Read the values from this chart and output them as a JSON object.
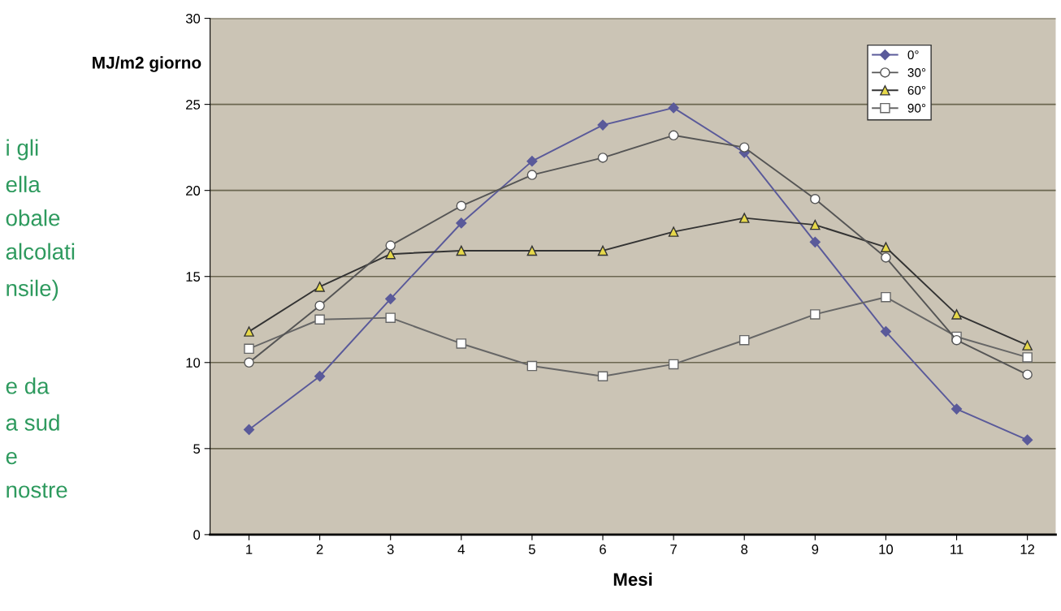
{
  "chart_data": {
    "type": "line",
    "ylabel": "MJ/m2 giorno",
    "xlabel": "Mesi",
    "categories": [
      "1",
      "2",
      "3",
      "4",
      "5",
      "6",
      "7",
      "8",
      "9",
      "10",
      "11",
      "12"
    ],
    "ylim": [
      0,
      30
    ],
    "yticks": [
      0,
      5,
      10,
      15,
      20,
      25,
      30
    ],
    "grid": "y",
    "legend": "top right",
    "series": [
      {
        "name": "0°",
        "color": "#5a5a9a",
        "marker": "diamond",
        "values": [
          6.1,
          9.2,
          13.7,
          18.1,
          21.7,
          23.8,
          24.8,
          22.2,
          17.0,
          11.8,
          7.3,
          5.5
        ]
      },
      {
        "name": "30°",
        "color": "#555555",
        "marker": "circle",
        "values": [
          10.0,
          13.3,
          16.8,
          19.1,
          20.9,
          21.9,
          23.2,
          22.5,
          19.5,
          16.1,
          11.3,
          9.3
        ]
      },
      {
        "name": "60°",
        "color": "#333333",
        "marker": "triangle",
        "values": [
          11.8,
          14.4,
          16.3,
          16.5,
          16.5,
          16.5,
          17.6,
          18.4,
          18.0,
          16.7,
          12.8,
          11.0
        ]
      },
      {
        "name": "90°",
        "color": "#666666",
        "marker": "square",
        "values": [
          10.8,
          12.5,
          12.6,
          11.1,
          9.8,
          9.2,
          9.9,
          11.3,
          12.8,
          13.8,
          11.5,
          10.3
        ]
      }
    ],
    "annotations": [
      "i gli",
      "ella",
      "obale",
      "alcolati",
      "nsile)",
      "e da",
      "a sud",
      "e",
      "nostre"
    ]
  }
}
